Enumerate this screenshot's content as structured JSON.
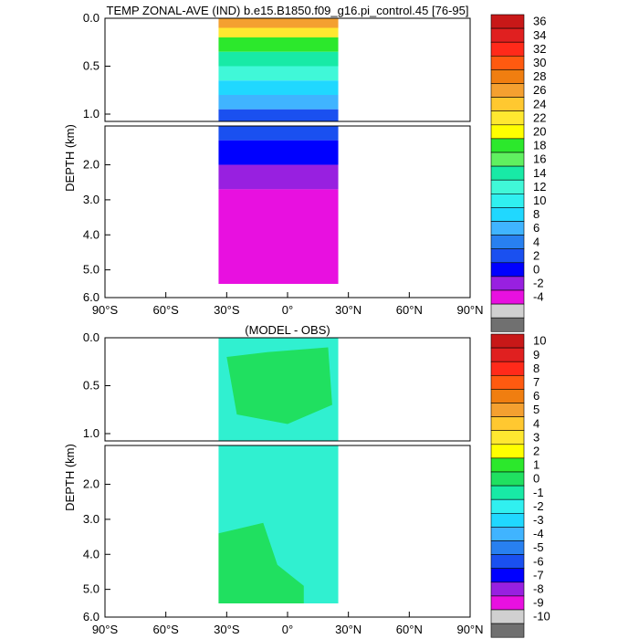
{
  "chart_data": [
    {
      "type": "heatmap",
      "title": "TEMP ZONAL-AVE (IND) b.e15.B1850.f09_g16.pi_control.45 [76-95]",
      "xlabel": "",
      "ylabel": "DEPTH (km)",
      "x_ticks": [
        "90°S",
        "60°S",
        "30°S",
        "0°",
        "30°N",
        "60°N",
        "90°N"
      ],
      "y_ticks_upper": [
        "0.0",
        "0.5",
        "1.0"
      ],
      "y_ticks_lower": [
        "2.0",
        "3.0",
        "4.0",
        "5.0",
        "6.0"
      ],
      "xlim": [
        -90,
        90
      ],
      "ylim": [
        6.0,
        0.0
      ],
      "upper_panel_depth_km": [
        0.0,
        1.0
      ],
      "lower_panel_depth_km": [
        1.0,
        6.0
      ],
      "data_extent_lat": [
        -34,
        25
      ],
      "colorbar_labels": [
        "36",
        "34",
        "32",
        "30",
        "28",
        "26",
        "24",
        "22",
        "20",
        "18",
        "16",
        "14",
        "12",
        "10",
        "8",
        "6",
        "4",
        "2",
        "0",
        "-2",
        "-4"
      ],
      "colorbar_colors": [
        "#c81818",
        "#e02020",
        "#ff2a1a",
        "#ff5a10",
        "#f07e10",
        "#f4a030",
        "#ffc830",
        "#ffe830",
        "#ffff00",
        "#2ce82c",
        "#60f060",
        "#18eaa6",
        "#40f8d8",
        "#30f0f0",
        "#20d8ff",
        "#40b4ff",
        "#2880f0",
        "#1a50f0",
        "#0000ff",
        "#9820e0",
        "#e810e0",
        "#d0d0d0",
        "#707070"
      ],
      "profile": [
        {
          "depth": 0.0,
          "value": 27,
          "color": "#f4a030"
        },
        {
          "depth": 0.1,
          "value": 22,
          "color": "#ffe830"
        },
        {
          "depth": 0.2,
          "value": 18,
          "color": "#2ce82c"
        },
        {
          "depth": 0.35,
          "value": 15,
          "color": "#18eaa6"
        },
        {
          "depth": 0.5,
          "value": 12,
          "color": "#40f8d8"
        },
        {
          "depth": 0.65,
          "value": 10,
          "color": "#20d8ff"
        },
        {
          "depth": 0.8,
          "value": 8,
          "color": "#40b4ff"
        },
        {
          "depth": 0.95,
          "value": 6,
          "color": "#1a50f0"
        },
        {
          "depth": 1.3,
          "value": 4,
          "color": "#0000ff"
        },
        {
          "depth": 2.0,
          "value": 3,
          "color": "#9820e0"
        },
        {
          "depth": 2.7,
          "value": 1,
          "color": "#e810e0"
        }
      ]
    },
    {
      "type": "heatmap",
      "title": "(MODEL - OBS)",
      "xlabel": "",
      "ylabel": "DEPTH (km)",
      "x_ticks": [
        "90°S",
        "60°S",
        "30°S",
        "0°",
        "30°N",
        "60°N",
        "90°N"
      ],
      "y_ticks_upper": [
        "0.0",
        "0.5",
        "1.0"
      ],
      "y_ticks_lower": [
        "2.0",
        "3.0",
        "4.0",
        "5.0",
        "6.0"
      ],
      "xlim": [
        -90,
        90
      ],
      "ylim": [
        6.0,
        0.0
      ],
      "upper_panel_depth_km": [
        0.0,
        1.0
      ],
      "lower_panel_depth_km": [
        1.0,
        6.0
      ],
      "data_extent_lat": [
        -34,
        25
      ],
      "colorbar_labels": [
        "10",
        "9",
        "8",
        "7",
        "6",
        "5",
        "4",
        "3",
        "2",
        "1",
        "0",
        "-1",
        "-2",
        "-3",
        "-4",
        "-5",
        "-6",
        "-7",
        "-8",
        "-9",
        "-10"
      ],
      "colorbar_colors": [
        "#c81818",
        "#e02020",
        "#ff2a1a",
        "#ff5a10",
        "#f07e10",
        "#f4a030",
        "#ffc830",
        "#ffe830",
        "#ffff00",
        "#2ce82c",
        "#20e060",
        "#18eaa6",
        "#30f0f0",
        "#20d8ff",
        "#40b4ff",
        "#2880f0",
        "#1a50f0",
        "#0000ff",
        "#9820e0",
        "#e810e0",
        "#d0d0d0",
        "#707070"
      ],
      "background_value_range": [
        -1,
        0
      ],
      "background_color": "#30f0d0",
      "positive_region_value_range": [
        0,
        1
      ],
      "positive_region_color": "#20e060"
    }
  ]
}
